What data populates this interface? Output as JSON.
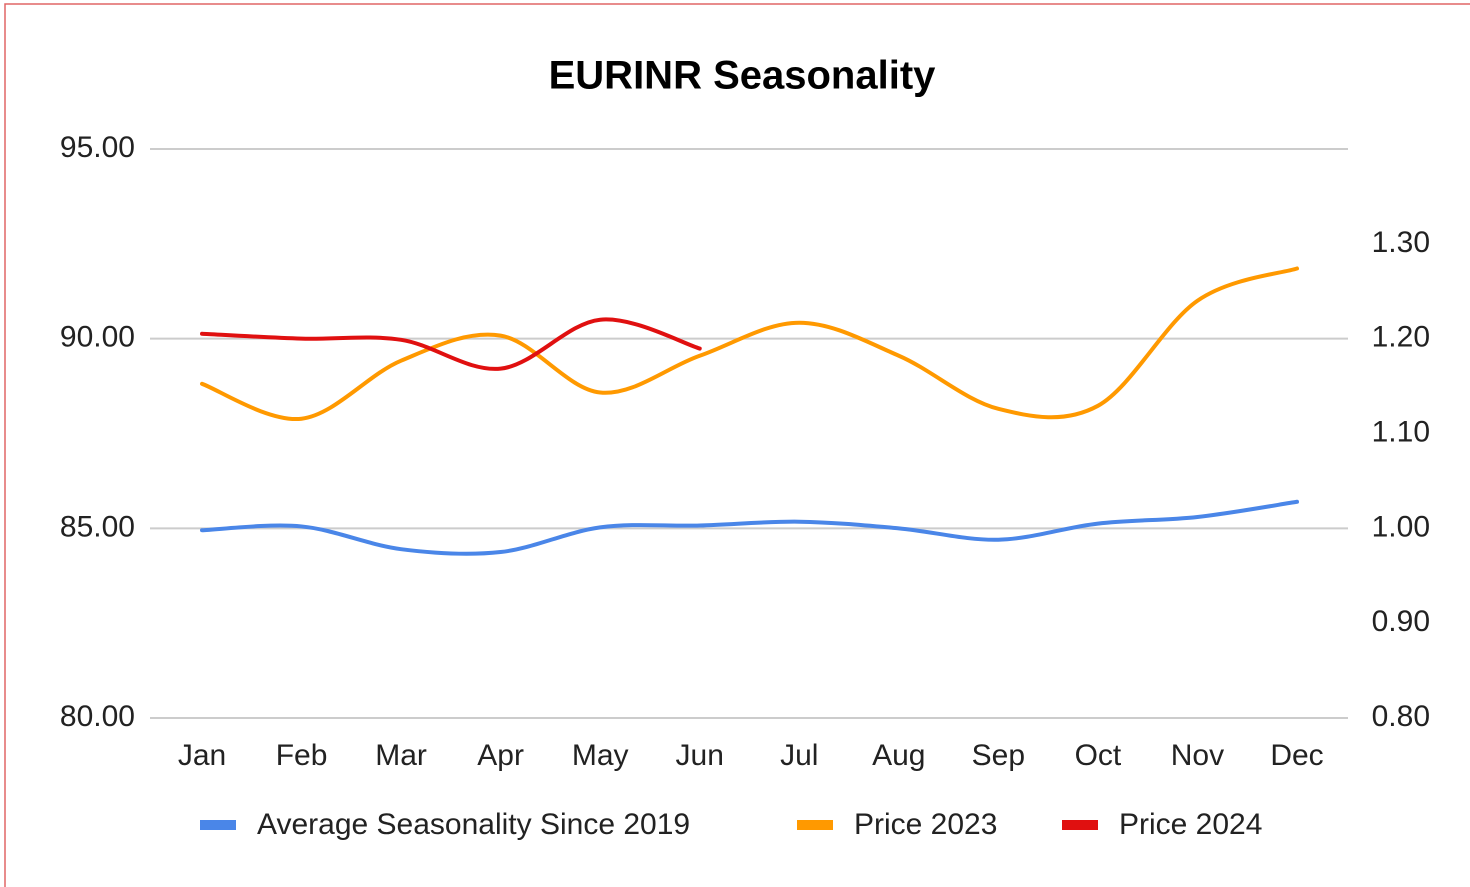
{
  "chart_data": {
    "type": "line",
    "title": "EURINR Seasonality",
    "categories": [
      "Jan",
      "Feb",
      "Mar",
      "Apr",
      "May",
      "Jun",
      "Jul",
      "Aug",
      "Sep",
      "Oct",
      "Nov",
      "Dec"
    ],
    "series": [
      {
        "name": "Average Seasonality Since 2019",
        "color": "#4a86e8",
        "axis": "y2",
        "values": [
          0.998,
          1.002,
          0.978,
          0.975,
          1.001,
          1.003,
          1.007,
          1.0,
          0.988,
          1.005,
          1.012,
          1.028
        ]
      },
      {
        "name": "Price 2023",
        "color": "#ff9900",
        "values": [
          88.81,
          87.89,
          89.42,
          90.08,
          88.58,
          89.55,
          90.42,
          89.55,
          88.15,
          88.23,
          91.0,
          91.85
        ]
      },
      {
        "name": "Price 2024",
        "color": "#e01010",
        "values": [
          90.13,
          90.0,
          89.97,
          89.21,
          90.5,
          89.74,
          null,
          null,
          null,
          null,
          null,
          null
        ]
      }
    ],
    "ylim": [
      80,
      95
    ],
    "yticks": [
      {
        "value": 80,
        "label": "80.00"
      },
      {
        "value": 85,
        "label": "85.00"
      },
      {
        "value": 90,
        "label": "90.00"
      },
      {
        "value": 95,
        "label": "95.00"
      }
    ],
    "y2lim": [
      0.8,
      1.4
    ],
    "y2ticks": [
      {
        "value": 0.8,
        "label": "0.80"
      },
      {
        "value": 0.9,
        "label": "0.90"
      },
      {
        "value": 1.0,
        "label": "1.00"
      },
      {
        "value": 1.1,
        "label": "1.10"
      },
      {
        "value": 1.2,
        "label": "1.20"
      },
      {
        "value": 1.3,
        "label": "1.30"
      }
    ],
    "grid": true,
    "legend": "bottom"
  }
}
